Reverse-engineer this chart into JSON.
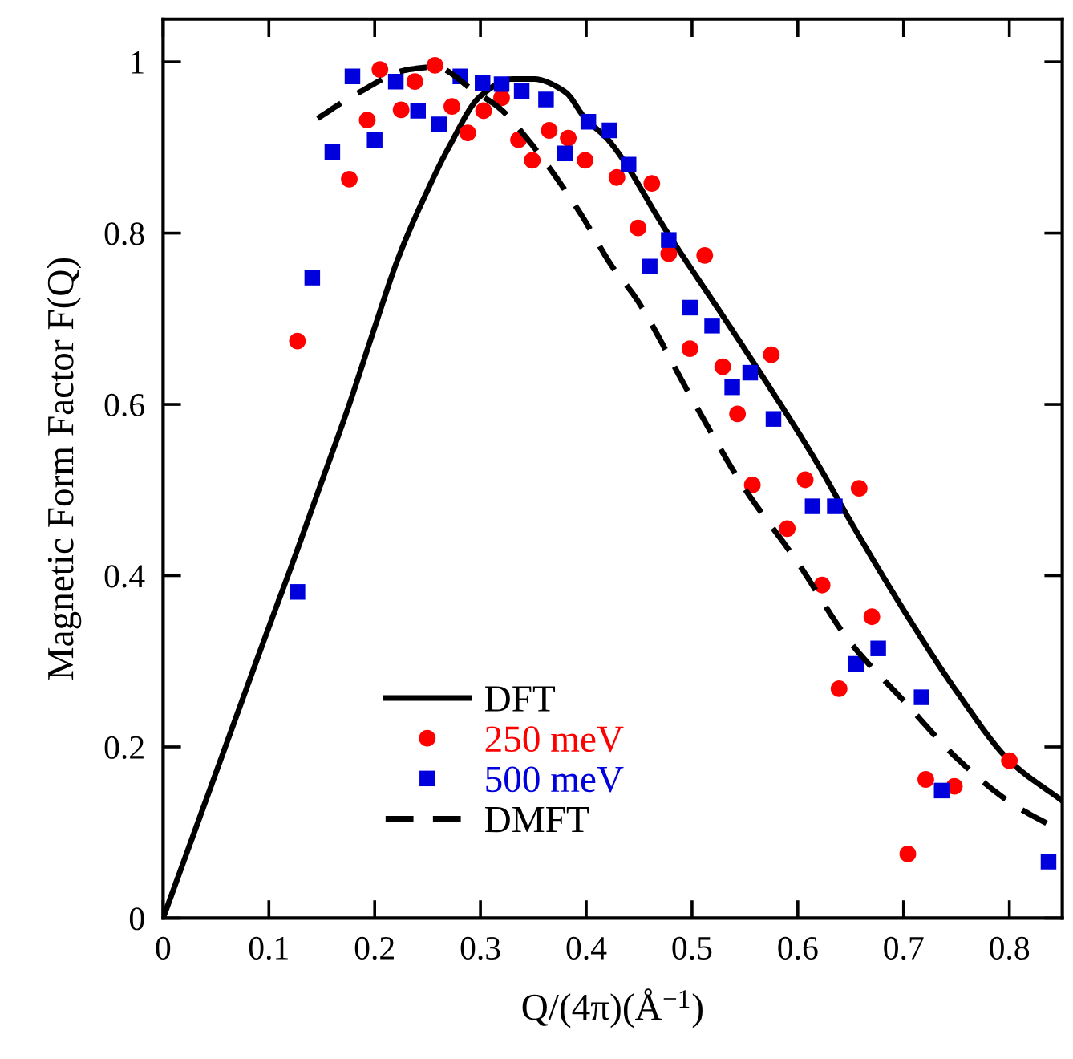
{
  "chart_data": {
    "type": "scatter",
    "xlabel": "Q/(4π)(Å$^{−1}$)",
    "ylabel": "Magnetic Form Factor F(Q)",
    "xlim": [
      0,
      0.85
    ],
    "ylim": [
      0,
      1.05
    ],
    "xticks": [
      0,
      0.1,
      0.2,
      0.3,
      0.4,
      0.5,
      0.6,
      0.7,
      0.8
    ],
    "yticks": [
      0,
      0.2,
      0.4,
      0.6,
      0.8,
      1
    ],
    "grid": false,
    "legend": "bottom",
    "series": [
      {
        "name": "DFT",
        "type": "line",
        "color": "#000000",
        "line_style": "solid",
        "marker": "none",
        "x": [
          0,
          0.05,
          0.1,
          0.118,
          0.15,
          0.176,
          0.2,
          0.222,
          0.25,
          0.27,
          0.3,
          0.33,
          0.35,
          0.38,
          0.399,
          0.42,
          0.477,
          0.548,
          0.619,
          0.649,
          0.7,
          0.75,
          0.8,
          0.85
        ],
        "values": [
          0,
          0.17,
          0.34,
          0.4,
          0.51,
          0.6,
          0.69,
          0.77,
          0.85,
          0.9,
          0.96,
          0.98,
          0.98,
          0.965,
          0.934,
          0.91,
          0.8,
          0.668,
          0.53,
          0.465,
          0.36,
          0.265,
          0.184,
          0.137
        ]
      },
      {
        "name": "250 meV",
        "color": "#ff0000",
        "marker": "circle",
        "x": [
          0.127,
          0.176,
          0.193,
          0.205,
          0.225,
          0.238,
          0.257,
          0.273,
          0.288,
          0.303,
          0.32,
          0.336,
          0.349,
          0.365,
          0.383,
          0.399,
          0.429,
          0.449,
          0.462,
          0.478,
          0.498,
          0.512,
          0.529,
          0.543,
          0.557,
          0.575,
          0.59,
          0.607,
          0.623,
          0.639,
          0.658,
          0.67,
          0.704,
          0.721,
          0.748,
          0.8
        ],
        "values": [
          0.674,
          0.863,
          0.932,
          0.991,
          0.944,
          0.977,
          0.996,
          0.948,
          0.917,
          0.943,
          0.958,
          0.909,
          0.885,
          0.92,
          0.911,
          0.885,
          0.865,
          0.806,
          0.858,
          0.776,
          0.665,
          0.774,
          0.644,
          0.589,
          0.506,
          0.658,
          0.455,
          0.512,
          0.389,
          0.268,
          0.502,
          0.352,
          0.075,
          0.162,
          0.154,
          0.184
        ]
      },
      {
        "name": "500 meV",
        "color": "#0000dd",
        "marker": "square",
        "x": [
          0.127,
          0.141,
          0.16,
          0.179,
          0.2,
          0.22,
          0.241,
          0.261,
          0.281,
          0.302,
          0.32,
          0.339,
          0.362,
          0.38,
          0.402,
          0.422,
          0.44,
          0.46,
          0.478,
          0.498,
          0.519,
          0.538,
          0.555,
          0.577,
          0.614,
          0.635,
          0.655,
          0.676,
          0.717,
          0.736,
          0.837
        ],
        "values": [
          0.381,
          0.748,
          0.895,
          0.983,
          0.909,
          0.977,
          0.943,
          0.927,
          0.983,
          0.975,
          0.974,
          0.966,
          0.956,
          0.893,
          0.93,
          0.92,
          0.88,
          0.761,
          0.792,
          0.713,
          0.692,
          0.62,
          0.637,
          0.583,
          0.481,
          0.481,
          0.297,
          0.315,
          0.258,
          0.149,
          0.066
        ]
      },
      {
        "name": "DMFT",
        "type": "line",
        "color": "#000000",
        "line_style": "dashed",
        "marker": "none",
        "x": [
          0.146,
          0.182,
          0.232,
          0.257,
          0.295,
          0.318,
          0.343,
          0.394,
          0.424,
          0.447,
          0.498,
          0.548,
          0.599,
          0.649,
          0.7,
          0.751,
          0.801,
          0.85
        ],
        "values": [
          0.934,
          0.962,
          0.991,
          0.994,
          0.965,
          0.946,
          0.912,
          0.824,
          0.762,
          0.724,
          0.611,
          0.505,
          0.417,
          0.323,
          0.254,
          0.186,
          0.135,
          0.101
        ]
      }
    ]
  }
}
